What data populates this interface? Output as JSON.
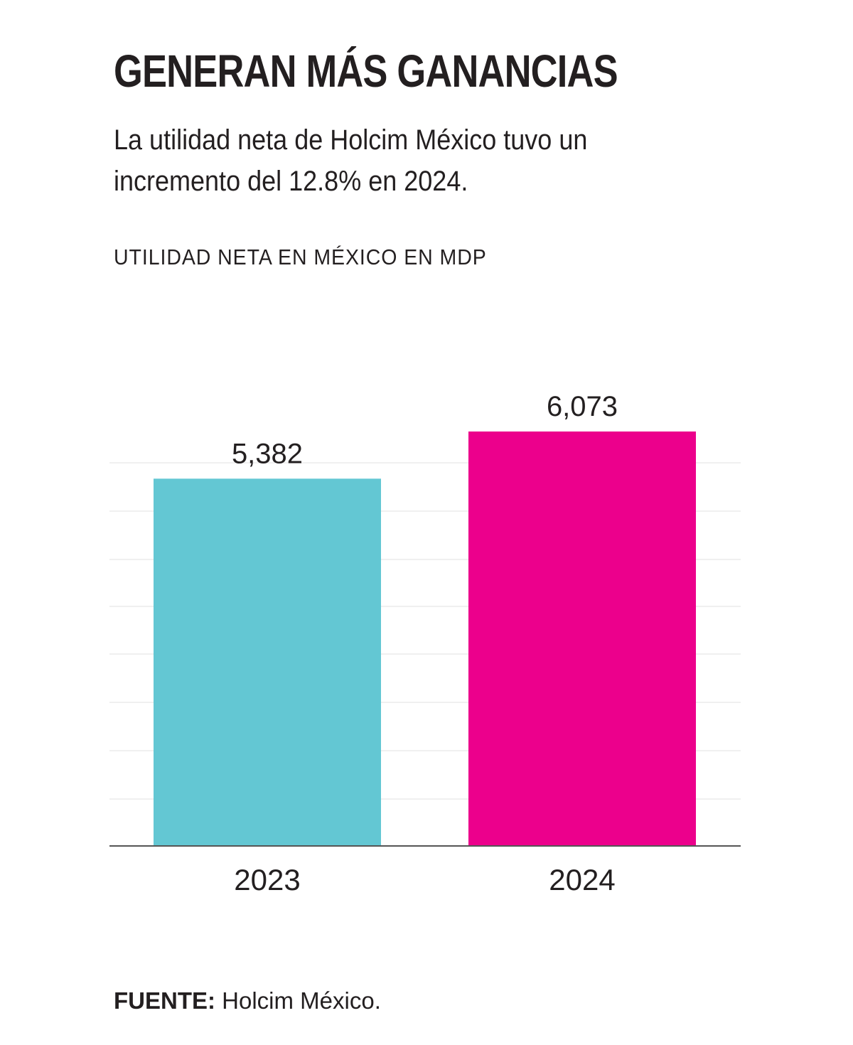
{
  "header": {
    "title": "GENERAN MÁS GANANCIAS",
    "subtitle": "La utilidad neta de Holcim México tuvo un incremento del 12.8% en 2024.",
    "units_label": "UTILIDAD NETA EN MÉXICO EN MDP"
  },
  "chart_data": {
    "type": "bar",
    "title": "",
    "xlabel": "",
    "ylabel": "",
    "categories": [
      "2023",
      "2024"
    ],
    "values": [
      5382,
      6073
    ],
    "value_labels": [
      "5,382",
      "6,073"
    ],
    "colors": [
      "#63c7d3",
      "#ec008c"
    ],
    "ylim": [
      0,
      6073
    ],
    "grid": true
  },
  "footer": {
    "source_label": "FUENTE:",
    "source_text": " Holcim México."
  }
}
